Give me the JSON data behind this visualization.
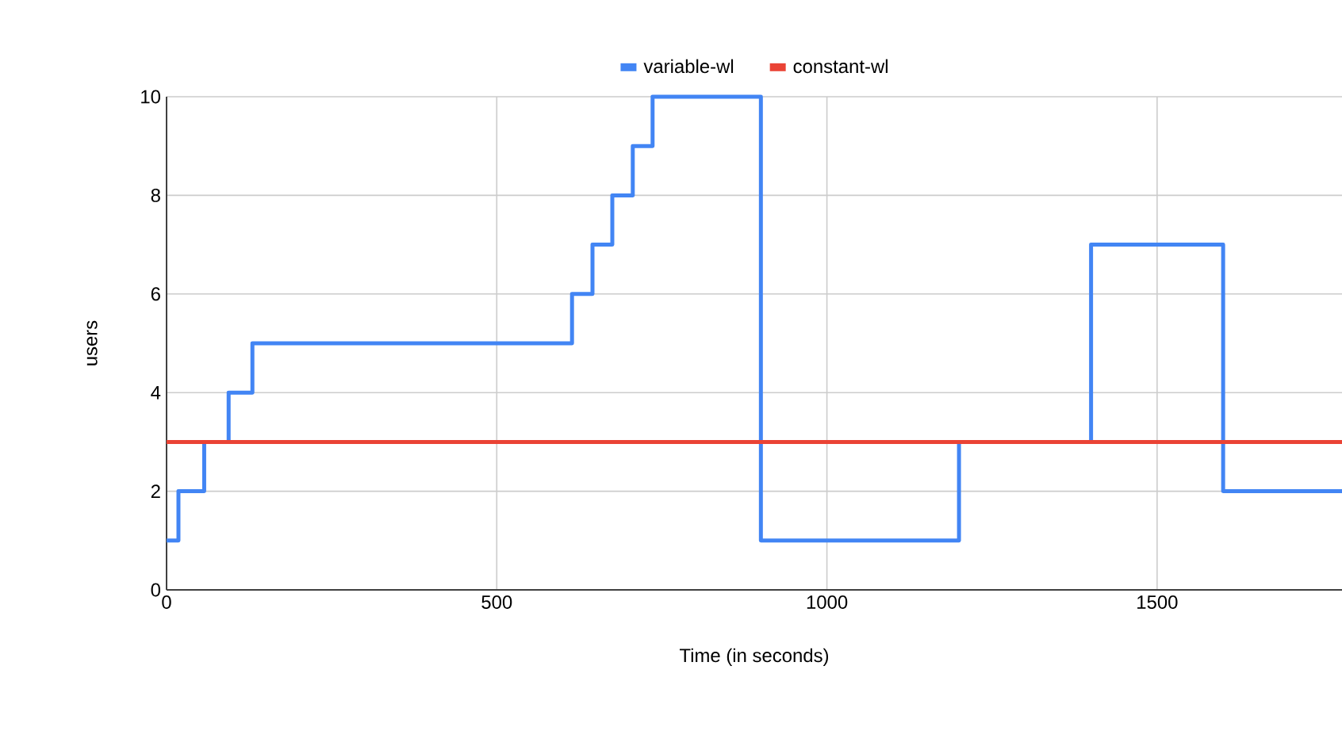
{
  "chart_data": {
    "type": "line",
    "xlabel": "Time (in seconds)",
    "ylabel": "users",
    "series": [
      {
        "name": "variable-wl",
        "type": "step",
        "color": "#4285f4",
        "x": [
          0,
          18,
          57,
          94,
          130,
          614,
          645,
          675,
          706,
          736,
          900,
          1200,
          1400,
          1600,
          1780
        ],
        "values": [
          1,
          2,
          3,
          4,
          5,
          6,
          7,
          8,
          9,
          10,
          1,
          3,
          7,
          2,
          2
        ]
      },
      {
        "name": "constant-wl",
        "color": "#ea4335",
        "x": [
          0,
          1780
        ],
        "values": [
          3,
          3
        ]
      }
    ],
    "xlim": [
      0,
      1780
    ],
    "ylim": [
      0,
      10
    ],
    "xticks": [
      0,
      500,
      1000,
      1500
    ],
    "yticks": [
      0,
      2,
      4,
      6,
      8,
      10
    ],
    "grid": true,
    "legend": "top",
    "marker": "none",
    "line_style": "solid"
  }
}
